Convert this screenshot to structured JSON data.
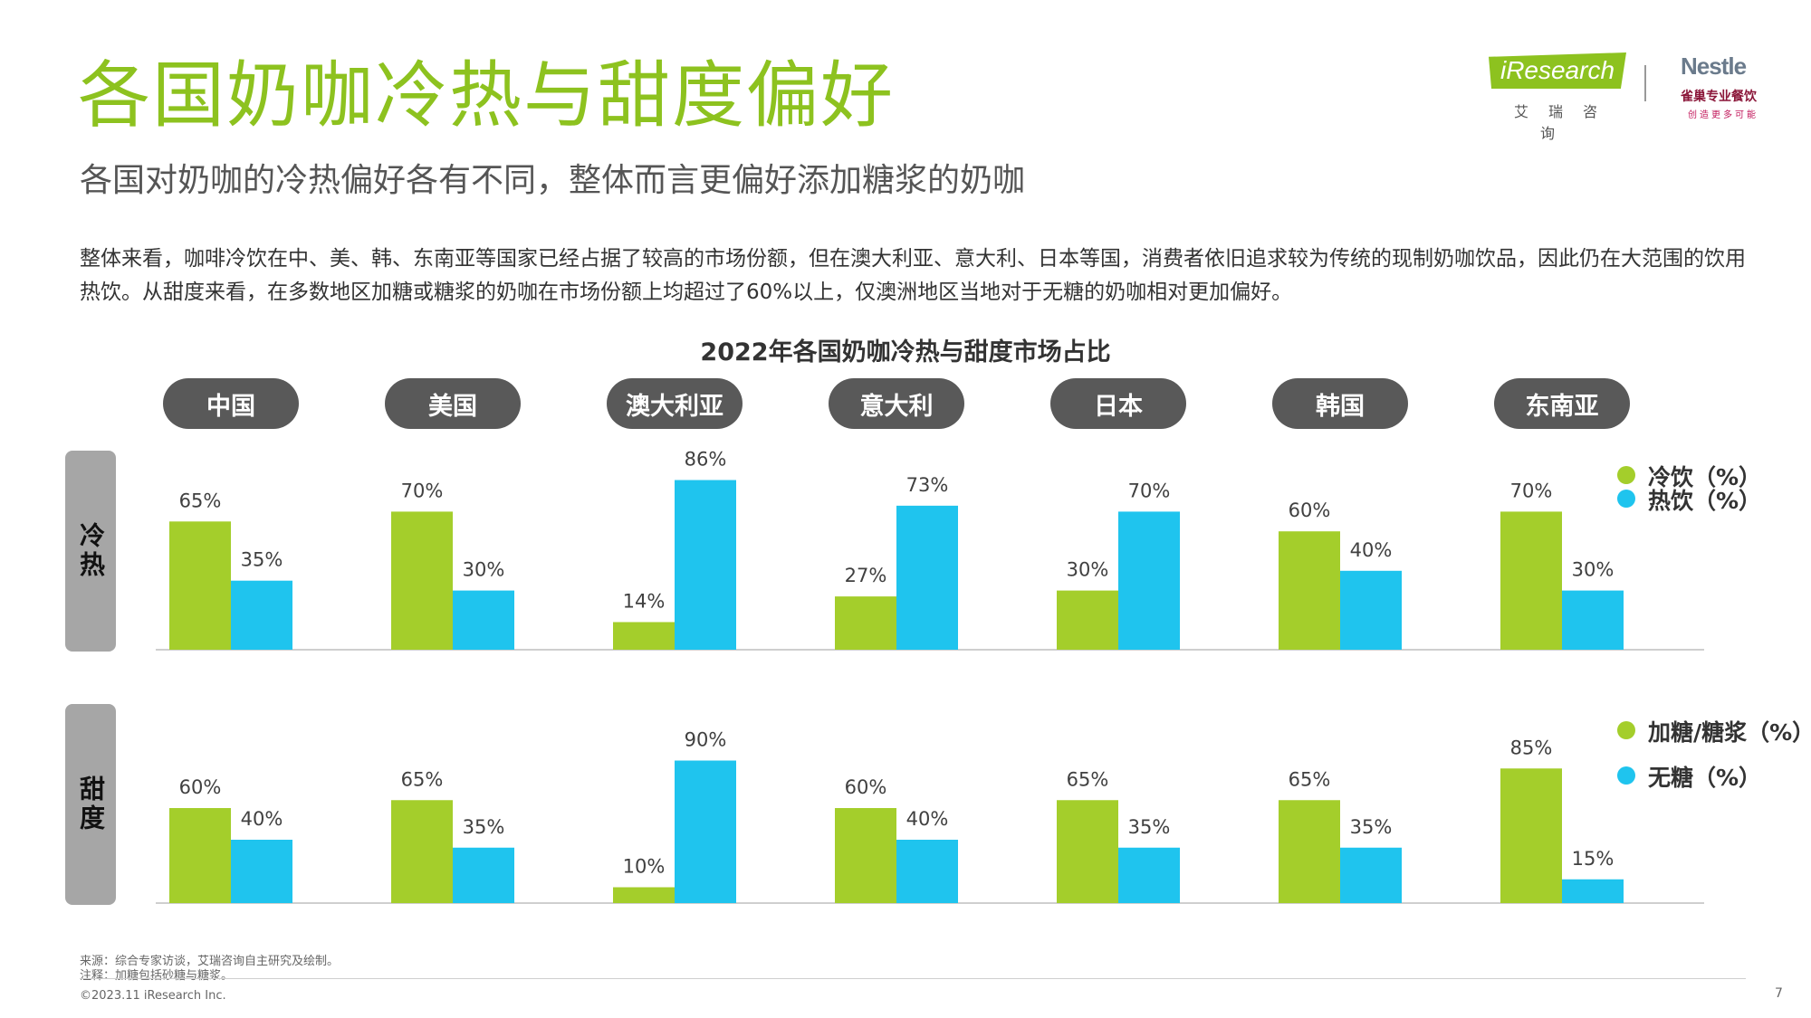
{
  "header": {
    "title": "各国奶咖冷热与甜度偏好",
    "subtitle": "各国对奶咖的冷热偏好各有不同，整体而言更偏好添加糖浆的奶咖"
  },
  "body_text": "整体来看，咖啡冷饮在中、美、韩、东南亚等国家已经占据了较高的市场份额，但在澳大利亚、意大利、日本等国，消费者依旧追求较为传统的现制奶咖饮品，因此仍在大范围的饮用热饮。从甜度来看，在多数地区加糖或糖浆的奶咖在市场份额上均超过了60%以上，仅澳洲地区当地对于无糖的奶咖相对更加偏好。",
  "logos": {
    "iresearch": "iResearch",
    "iresearch_cn": "艾瑞咨询",
    "nestle": "Nestle",
    "nestle_cn": "雀巢专业餐饮",
    "nestle_tagline": "创造更多可能"
  },
  "colors": {
    "title": "#8dc21f",
    "green": "#a4ce2b",
    "blue": "#1fc4ee",
    "pill": "#595959",
    "side_label": "#a6a6a6"
  },
  "chart_data": {
    "type": "bar",
    "title": "2022年各国奶咖冷热与甜度市场占比",
    "categories": [
      "中国",
      "美国",
      "澳大利亚",
      "意大利",
      "日本",
      "韩国",
      "东南亚"
    ],
    "panels": [
      {
        "label": "冷热",
        "ylim": [
          0,
          100
        ],
        "series": [
          {
            "name": "冷饮（%）",
            "color": "#a4ce2b",
            "values": [
              65,
              70,
              14,
              27,
              30,
              60,
              70
            ],
            "labels": [
              "65%",
              "70%",
              "14%",
              "27%",
              "30%",
              "60%",
              "70%"
            ]
          },
          {
            "name": "热饮（%）",
            "color": "#1fc4ee",
            "values": [
              35,
              30,
              86,
              73,
              70,
              40,
              30
            ],
            "labels": [
              "35%",
              "30%",
              "86%",
              "73%",
              "70%",
              "40%",
              "30%"
            ]
          }
        ]
      },
      {
        "label": "甜度",
        "ylim": [
          0,
          100
        ],
        "series": [
          {
            "name": "加糖/糖浆（%）",
            "color": "#a4ce2b",
            "values": [
              60,
              65,
              10,
              60,
              65,
              65,
              85
            ],
            "labels": [
              "60%",
              "65%",
              "10%",
              "60%",
              "65%",
              "65%",
              "85%"
            ]
          },
          {
            "name": "无糖（%）",
            "color": "#1fc4ee",
            "values": [
              40,
              35,
              90,
              40,
              35,
              35,
              15
            ],
            "labels": [
              "40%",
              "35%",
              "90%",
              "40%",
              "35%",
              "35%",
              "15%"
            ]
          }
        ]
      }
    ]
  },
  "footer": {
    "source": "来源：综合专家访谈，艾瑞咨询自主研究及绘制。",
    "note": "注释：加糖包括砂糖与糖浆。",
    "copyright": "©2023.11 iResearch Inc.",
    "page": "7"
  }
}
